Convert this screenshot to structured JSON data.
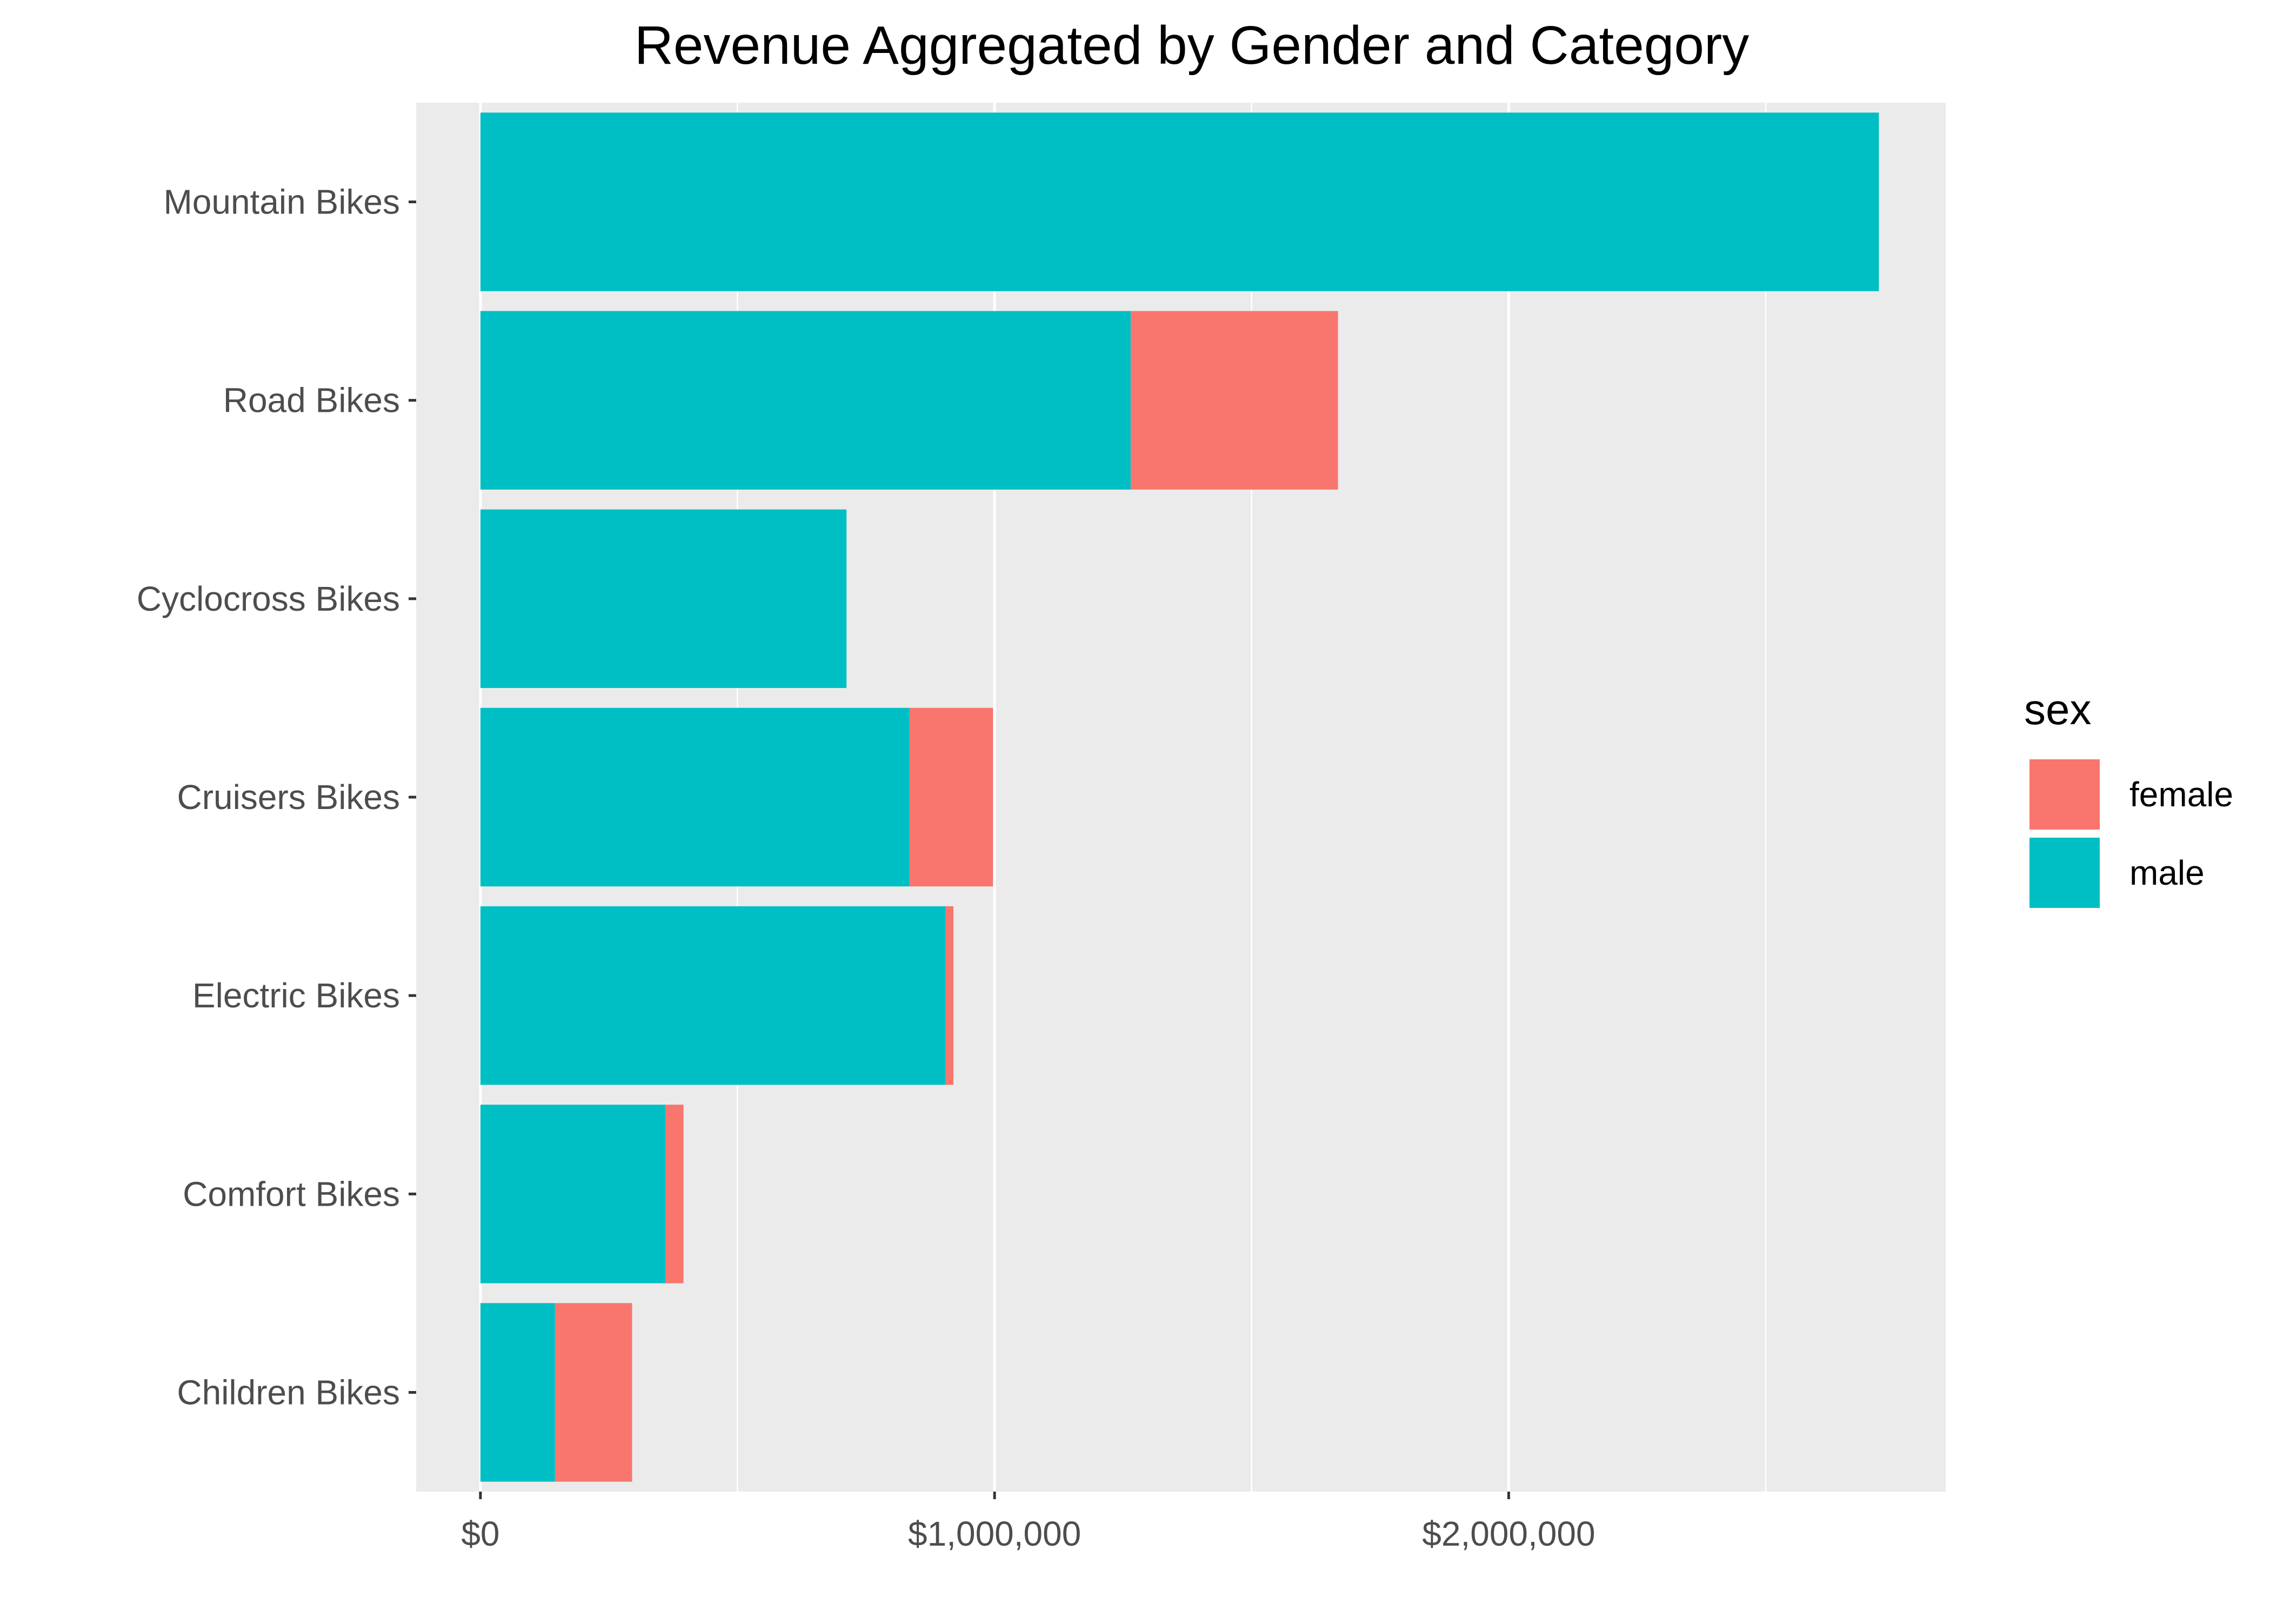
{
  "chart_data": {
    "type": "bar",
    "orientation": "horizontal",
    "stacked": true,
    "title": "Revenue Aggregated by Gender and Category",
    "xlabel": "",
    "ylabel": "",
    "categories": [
      "Mountain Bikes",
      "Road Bikes",
      "Cyclocross Bikes",
      "Cruisers Bikes",
      "Electric Bikes",
      "Comfort Bikes",
      "Children Bikes"
    ],
    "series": [
      {
        "name": "male",
        "color": "#00BFC4",
        "values": [
          2720000,
          1265000,
          712000,
          835000,
          905000,
          360000,
          145000
        ]
      },
      {
        "name": "female",
        "color": "#F8766D",
        "values": [
          0,
          403000,
          0,
          162000,
          15000,
          35000,
          150000
        ]
      }
    ],
    "xlim": [
      -125000,
      2850000
    ],
    "x_ticks": [
      0,
      1000000,
      2000000
    ],
    "x_tick_labels": [
      "$0",
      "$1,000,000",
      "$2,000,000"
    ],
    "minor_ticks": [
      500000,
      1500000,
      2500000
    ],
    "grid": true,
    "panel_color": "#EBEBEB",
    "legend": {
      "title": "sex",
      "position": "right",
      "entries": [
        {
          "label": "female",
          "color": "#F8766D"
        },
        {
          "label": "male",
          "color": "#00BFC4"
        }
      ]
    }
  }
}
